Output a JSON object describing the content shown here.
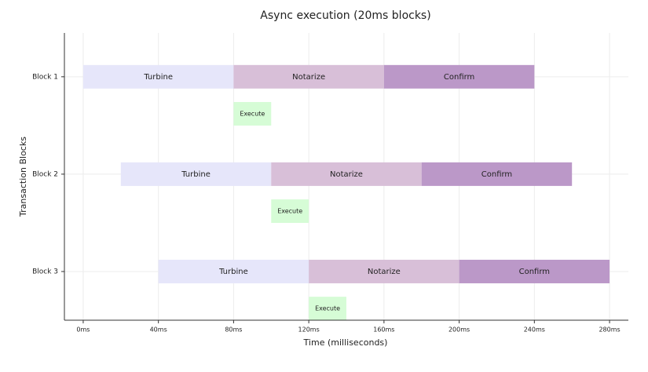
{
  "chart_data": {
    "type": "gantt",
    "title": "Async execution (20ms blocks)",
    "x_label": "Time (milliseconds)",
    "y_label": "Transaction Blocks",
    "xlim": [
      -10,
      290
    ],
    "xticks": [
      {
        "value": 0,
        "label": "0ms"
      },
      {
        "value": 40,
        "label": "40ms"
      },
      {
        "value": 80,
        "label": "80ms"
      },
      {
        "value": 120,
        "label": "120ms"
      },
      {
        "value": 160,
        "label": "160ms"
      },
      {
        "value": 200,
        "label": "200ms"
      },
      {
        "value": 240,
        "label": "240ms"
      },
      {
        "value": 280,
        "label": "280ms"
      }
    ],
    "ylim": [
      -0.45,
      2.5
    ],
    "y_inverted": true,
    "yticks": [
      {
        "value": 0,
        "label": "Block 1"
      },
      {
        "value": 1,
        "label": "Block 2"
      },
      {
        "value": 2,
        "label": "Block 3"
      }
    ],
    "grid": true,
    "series": [
      {
        "name": "Turbine",
        "color": "#e6e6fa",
        "y": [
          0,
          1,
          2
        ],
        "start": [
          0,
          20,
          40
        ],
        "end": [
          80,
          100,
          120
        ]
      },
      {
        "name": "Notarize",
        "color": "#d8bfd8",
        "y": [
          0,
          1,
          2
        ],
        "start": [
          80,
          100,
          120
        ],
        "end": [
          160,
          180,
          200
        ]
      },
      {
        "name": "Confirm",
        "color": "#bb98c8",
        "y": [
          0,
          1,
          2
        ],
        "start": [
          160,
          180,
          200
        ],
        "end": [
          240,
          260,
          280
        ]
      },
      {
        "name": "Execute",
        "color": "#d6fcd6",
        "y": [
          0.38,
          1.38,
          2.38
        ],
        "start": [
          80,
          100,
          120
        ],
        "end": [
          100,
          120,
          140
        ]
      }
    ]
  }
}
